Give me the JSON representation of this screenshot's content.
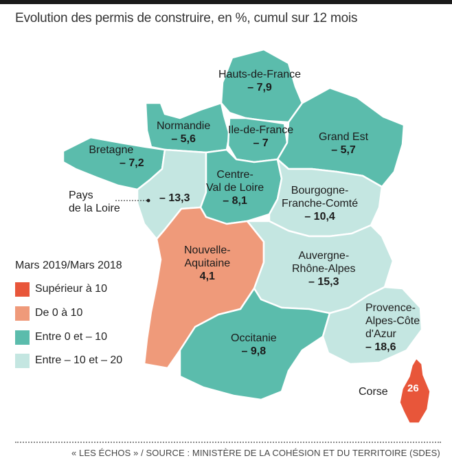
{
  "title": "Evolution des permis de construire, en %, cumul sur 12 mois",
  "legend": {
    "title": "Mars 2019/Mars 2018",
    "items": [
      {
        "label": "Supérieur à 10",
        "color": "#e8563a"
      },
      {
        "label": "De 0 à 10",
        "color": "#ef9a7a"
      },
      {
        "label": "Entre 0 et – 10",
        "color": "#5bbcac"
      },
      {
        "label": "Entre – 10 et – 20",
        "color": "#c4e6e1"
      }
    ]
  },
  "regions": {
    "hauts_de_france": {
      "name": "Hauts-de-France",
      "value": "– 7,9"
    },
    "normandie": {
      "name": "Normandie",
      "value": "– 5,6"
    },
    "ile_de_france": {
      "name": "Ile-de-France",
      "value": "– 7"
    },
    "grand_est": {
      "name": "Grand Est",
      "value": "– 5,7"
    },
    "bretagne": {
      "name": "Bretagne",
      "value": "– 7,2"
    },
    "pays_de_la_loire": {
      "name_line1": "Pays",
      "name_line2": "de la Loire",
      "value": "– 13,3"
    },
    "centre": {
      "name_line1": "Centre-",
      "name_line2": "Val de Loire",
      "value": "– 8,1"
    },
    "bourgogne": {
      "name_line1": "Bourgogne-",
      "name_line2": "Franche-Comté",
      "value": "– 10,4"
    },
    "nouvelle_aquitaine": {
      "name_line1": "Nouvelle-",
      "name_line2": "Aquitaine",
      "value": "4,1"
    },
    "auvergne": {
      "name_line1": "Auvergne-",
      "name_line2": "Rhône-Alpes",
      "value": "– 15,3"
    },
    "occitanie": {
      "name": "Occitanie",
      "value": "– 9,8"
    },
    "paca": {
      "name_line1": "Provence-",
      "name_line2": "Alpes-Côte",
      "name_line3": "d'Azur",
      "value": "– 18,6"
    },
    "corse": {
      "name": "Corse",
      "value": "26"
    }
  },
  "source": "« LES ÉCHOS » / SOURCE : MINISTÈRE DE LA COHÉSION ET DU TERRITOIRE (SDES)"
}
